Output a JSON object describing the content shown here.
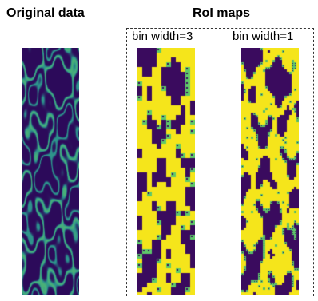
{
  "figure": {
    "left_heading": "Original data",
    "right_heading": "RoI maps",
    "maps": [
      {
        "label": "bin width=3",
        "cell": 3
      },
      {
        "label": "bin width=1",
        "cell": 1
      }
    ]
  },
  "colors": {
    "background_dark": "#2c0a5a",
    "feature_teal": "#2a8f8e",
    "feature_green": "#5ec86a",
    "roi_yellow": "#f5e51b",
    "roi_purple": "#3a0b5e"
  }
}
